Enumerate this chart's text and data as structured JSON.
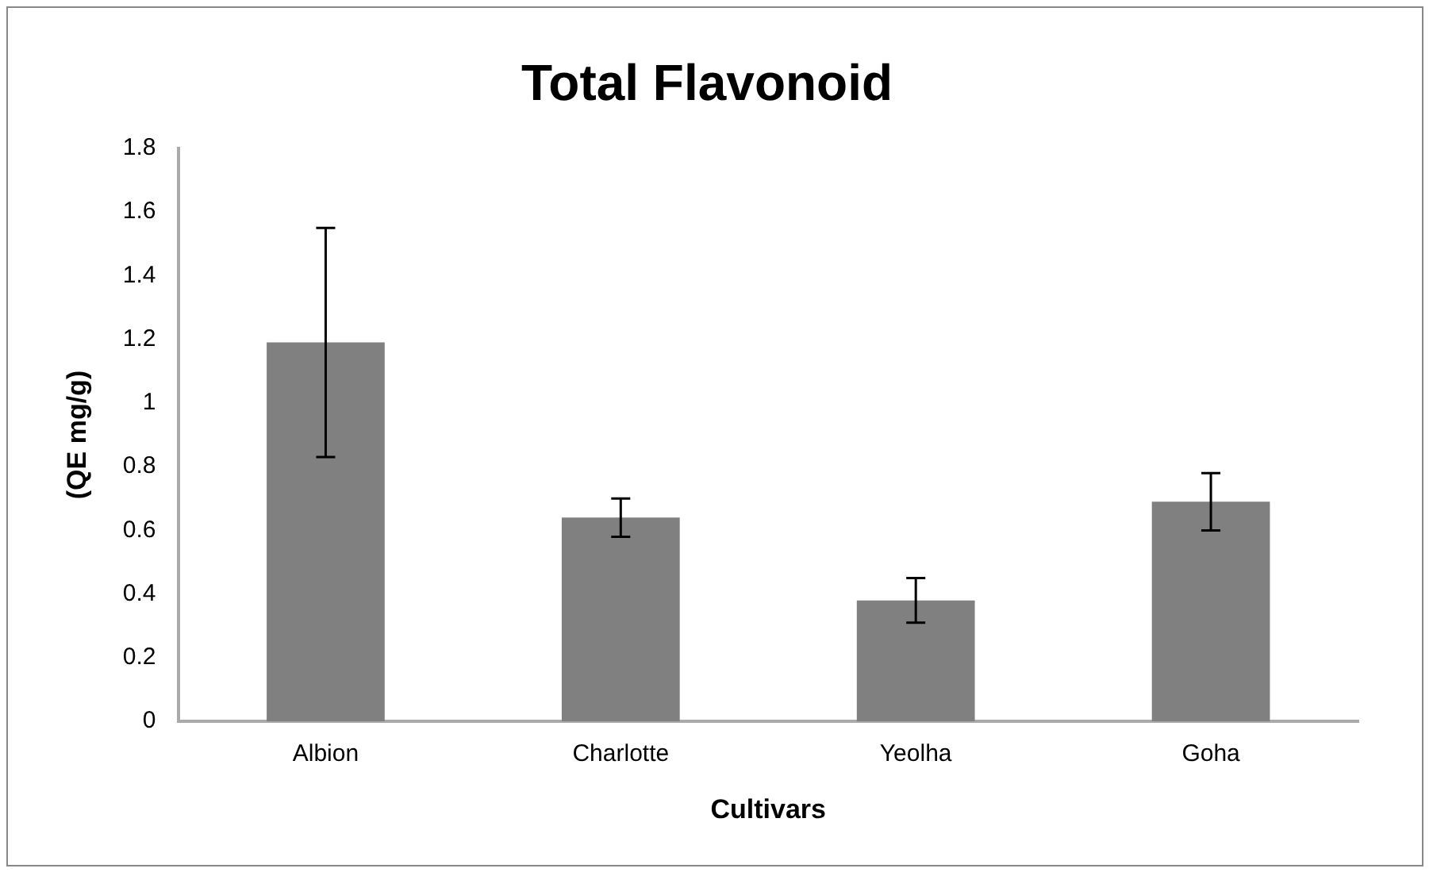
{
  "chart_data": {
    "type": "bar",
    "title": "Total Flavonoid",
    "xlabel": "Cultivars",
    "ylabel": "(QE mg/g)",
    "categories": [
      "Albion",
      "Charlotte",
      "Yeolha",
      "Goha"
    ],
    "values": [
      1.19,
      0.64,
      0.38,
      0.69
    ],
    "errors": [
      0.36,
      0.06,
      0.07,
      0.09
    ],
    "color": "#808080",
    "ylim": [
      0,
      1.8
    ],
    "yticks": [
      0,
      0.2,
      0.4,
      0.6,
      0.8,
      1,
      1.2,
      1.4,
      1.6,
      1.8
    ],
    "grid": false,
    "legend": false
  }
}
